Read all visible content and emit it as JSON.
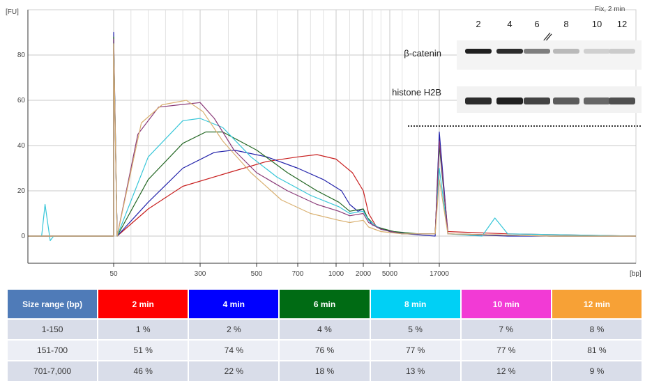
{
  "chart_data": {
    "type": "line",
    "title": "",
    "ylabel_top": "[FU]",
    "ylim": [
      -12,
      100
    ],
    "y_ticks": [
      0,
      20,
      40,
      60,
      80
    ],
    "x_axis_unit": "[bp]",
    "x_ticks": [
      "50",
      "300",
      "500",
      "700",
      "1000",
      "2000",
      "5000",
      "17000"
    ],
    "x_tick_positions_bp": [
      50,
      300,
      500,
      700,
      1000,
      2000,
      5000,
      17000
    ],
    "grid": true,
    "series": [
      {
        "name": "2 min",
        "color": "#c81e1e",
        "points": [
          [
            0,
            0
          ],
          [
            50,
            0
          ],
          [
            50,
            83
          ],
          [
            60,
            0
          ],
          [
            150,
            12
          ],
          [
            250,
            22
          ],
          [
            400,
            28
          ],
          [
            550,
            33
          ],
          [
            700,
            35
          ],
          [
            850,
            36
          ],
          [
            1000,
            34
          ],
          [
            1300,
            31
          ],
          [
            1600,
            28
          ],
          [
            2000,
            20
          ],
          [
            2600,
            10
          ],
          [
            3500,
            4
          ],
          [
            5000,
            2
          ],
          [
            8000,
            1
          ],
          [
            12000,
            1
          ],
          [
            16000,
            1
          ],
          [
            17000,
            43
          ],
          [
            18000,
            2
          ],
          [
            25000,
            1
          ],
          [
            40000,
            0
          ]
        ]
      },
      {
        "name": "4 min",
        "color": "#2222aa",
        "points": [
          [
            0,
            0
          ],
          [
            50,
            0
          ],
          [
            50,
            90
          ],
          [
            60,
            0
          ],
          [
            150,
            15
          ],
          [
            250,
            30
          ],
          [
            350,
            37
          ],
          [
            420,
            38
          ],
          [
            550,
            35
          ],
          [
            700,
            30
          ],
          [
            900,
            25
          ],
          [
            1200,
            20
          ],
          [
            1500,
            14
          ],
          [
            1800,
            11
          ],
          [
            2000,
            12
          ],
          [
            2300,
            9
          ],
          [
            3000,
            5
          ],
          [
            5000,
            2
          ],
          [
            9000,
            1
          ],
          [
            16000,
            0
          ],
          [
            17000,
            46
          ],
          [
            18000,
            1
          ],
          [
            25000,
            0
          ],
          [
            40000,
            0
          ]
        ]
      },
      {
        "name": "6 min",
        "color": "#226622",
        "points": [
          [
            0,
            0
          ],
          [
            50,
            0
          ],
          [
            50,
            88
          ],
          [
            60,
            0
          ],
          [
            150,
            25
          ],
          [
            250,
            41
          ],
          [
            320,
            46
          ],
          [
            380,
            46
          ],
          [
            500,
            38
          ],
          [
            650,
            28
          ],
          [
            850,
            20
          ],
          [
            1100,
            15
          ],
          [
            1500,
            11
          ],
          [
            2000,
            12
          ],
          [
            2500,
            8
          ],
          [
            3500,
            4
          ],
          [
            6000,
            2
          ],
          [
            12000,
            1
          ],
          [
            16000,
            1
          ],
          [
            17000,
            40
          ],
          [
            18000,
            1
          ],
          [
            30000,
            0
          ],
          [
            40000,
            0
          ]
        ]
      },
      {
        "name": "8 min",
        "color": "#36c6d8",
        "points": [
          [
            0,
            0
          ],
          [
            8,
            0
          ],
          [
            10,
            14
          ],
          [
            13,
            -2
          ],
          [
            15,
            0
          ],
          [
            50,
            0
          ],
          [
            50,
            86
          ],
          [
            60,
            0
          ],
          [
            150,
            35
          ],
          [
            250,
            51
          ],
          [
            300,
            52
          ],
          [
            380,
            48
          ],
          [
            480,
            35
          ],
          [
            600,
            26
          ],
          [
            800,
            18
          ],
          [
            1100,
            13
          ],
          [
            1500,
            10
          ],
          [
            2000,
            11
          ],
          [
            2600,
            7
          ],
          [
            4000,
            3
          ],
          [
            8000,
            1
          ],
          [
            16000,
            1
          ],
          [
            17000,
            30
          ],
          [
            18000,
            1
          ],
          [
            22000,
            0
          ],
          [
            23500,
            8
          ],
          [
            25000,
            1
          ],
          [
            40000,
            0
          ]
        ]
      },
      {
        "name": "10 min",
        "color": "#8a3a78",
        "points": [
          [
            0,
            0
          ],
          [
            50,
            0
          ],
          [
            50,
            87
          ],
          [
            60,
            0
          ],
          [
            120,
            45
          ],
          [
            180,
            57
          ],
          [
            240,
            58
          ],
          [
            300,
            59
          ],
          [
            350,
            52
          ],
          [
            420,
            38
          ],
          [
            500,
            28
          ],
          [
            650,
            20
          ],
          [
            850,
            14
          ],
          [
            1100,
            11
          ],
          [
            1500,
            9
          ],
          [
            2000,
            10
          ],
          [
            2600,
            6
          ],
          [
            4000,
            3
          ],
          [
            8000,
            1
          ],
          [
            16000,
            1
          ],
          [
            17000,
            42
          ],
          [
            18000,
            1
          ],
          [
            30000,
            0
          ],
          [
            40000,
            0
          ]
        ]
      },
      {
        "name": "12 min",
        "color": "#d9b070",
        "points": [
          [
            0,
            0
          ],
          [
            50,
            0
          ],
          [
            50,
            85
          ],
          [
            60,
            0
          ],
          [
            130,
            50
          ],
          [
            190,
            58
          ],
          [
            260,
            60
          ],
          [
            310,
            55
          ],
          [
            380,
            42
          ],
          [
            480,
            28
          ],
          [
            620,
            16
          ],
          [
            800,
            10
          ],
          [
            1100,
            7
          ],
          [
            1500,
            6
          ],
          [
            2000,
            7
          ],
          [
            2600,
            4
          ],
          [
            4000,
            2
          ],
          [
            8000,
            1
          ],
          [
            16000,
            1
          ],
          [
            17000,
            25
          ],
          [
            18000,
            1
          ],
          [
            30000,
            0
          ],
          [
            40000,
            0
          ]
        ]
      }
    ]
  },
  "blot": {
    "header_right": "Fix, 2 min",
    "lane_labels": [
      "2",
      "4",
      "6",
      "8",
      "10",
      "12"
    ],
    "checkmark_icon": "checkmark-icon",
    "bands": [
      {
        "label": "β-catenin",
        "intensities": [
          0.95,
          0.9,
          0.55,
          0.3,
          0.2,
          0.22
        ]
      },
      {
        "label": "histone H2B",
        "intensities": [
          0.9,
          0.95,
          0.8,
          0.7,
          0.65,
          0.75
        ]
      }
    ]
  },
  "table": {
    "header_first": "Size range (bp)",
    "columns": [
      {
        "label": "2 min",
        "color": "#ff0000"
      },
      {
        "label": "4 min",
        "color": "#0000ff"
      },
      {
        "label": "6 min",
        "color": "#006b14"
      },
      {
        "label": "8 min",
        "color": "#00d0f5"
      },
      {
        "label": "10 min",
        "color": "#f23ad5"
      },
      {
        "label": "12 min",
        "color": "#f7a136"
      }
    ],
    "header_first_color": "#4f7bb8",
    "rows": [
      {
        "range": "1-150",
        "values": [
          "1 %",
          "2 %",
          "4 %",
          "5 %",
          "7 %",
          "8 %"
        ]
      },
      {
        "range": "151-700",
        "values": [
          "51 %",
          "74 %",
          "76 %",
          "77 %",
          "77 %",
          "81 %"
        ]
      },
      {
        "range": "701-7,000",
        "values": [
          "46 %",
          "22 %",
          "18 %",
          "13 %",
          "12 %",
          "9 %"
        ]
      }
    ]
  }
}
